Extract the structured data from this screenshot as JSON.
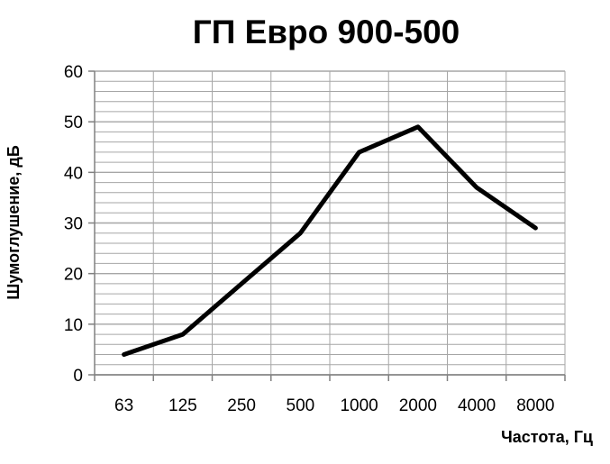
{
  "chart_data": {
    "type": "line",
    "title": "ГП Евро 900-500",
    "xlabel": "Частота, Гц",
    "ylabel": "Шумоглушение, дБ",
    "categories": [
      "63",
      "125",
      "250",
      "500",
      "1000",
      "2000",
      "4000",
      "8000"
    ],
    "series": [
      {
        "values": [
          4,
          8,
          18,
          28,
          44,
          49,
          37,
          29
        ]
      }
    ],
    "ylim": [
      0,
      60
    ],
    "yticks": [
      0,
      10,
      20,
      30,
      40,
      50,
      60
    ],
    "grid": true,
    "legend": "none",
    "colors": {
      "line": "#000000",
      "grid": "#a6a6a6",
      "axis": "#808080"
    }
  }
}
